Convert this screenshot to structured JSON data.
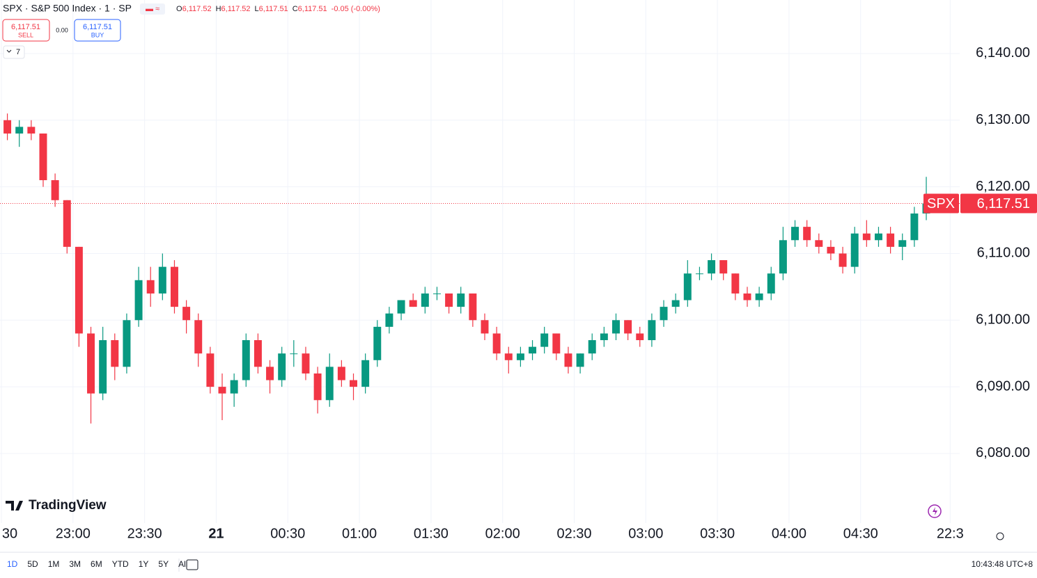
{
  "chart_data": {
    "type": "candlestick",
    "title": "SPX · S&P 500 Index · 1 · SP",
    "ohlc_readout": [
      "O",
      "6,117.52",
      "H",
      "6,117.52",
      "L",
      "6,117.51",
      "C",
      "6,117.51",
      "-0.05 (-0.00%)"
    ],
    "sell_price": "6,117.51",
    "sell_label": "SELL",
    "spread": "0.00",
    "buy_price": "6,117.51",
    "buy_label": "BUY",
    "indicator_count": "7",
    "up_color": "#089981",
    "down_color": "#f23645",
    "ohlc": [
      [
        6130,
        6131,
        6127,
        6128
      ],
      [
        6128,
        6130,
        6126,
        6129
      ],
      [
        6129,
        6130,
        6127,
        6128
      ],
      [
        6128,
        6128,
        6120,
        6121
      ],
      [
        6121,
        6122,
        6117,
        6118
      ],
      [
        6118,
        6118,
        6110,
        6111
      ],
      [
        6111,
        6111,
        6096,
        6098
      ],
      [
        6098,
        6099,
        6084.5,
        6089
      ],
      [
        6089,
        6099,
        6088,
        6097
      ],
      [
        6097,
        6098,
        6091,
        6093
      ],
      [
        6093,
        6101,
        6092,
        6100
      ],
      [
        6100,
        6108,
        6099,
        6106
      ],
      [
        6106,
        6108,
        6102,
        6104
      ],
      [
        6104,
        6110,
        6103,
        6108
      ],
      [
        6108,
        6109,
        6101,
        6102
      ],
      [
        6102,
        6103,
        6098,
        6100
      ],
      [
        6100,
        6101,
        6093,
        6095
      ],
      [
        6095,
        6096,
        6089,
        6090
      ],
      [
        6090,
        6092,
        6085,
        6089
      ],
      [
        6089,
        6092,
        6087,
        6091
      ],
      [
        6091,
        6098,
        6090,
        6097
      ],
      [
        6097,
        6098,
        6092,
        6093
      ],
      [
        6093,
        6094,
        6089,
        6091
      ],
      [
        6091,
        6096,
        6090,
        6095
      ],
      [
        6095,
        6097,
        6093,
        6095
      ],
      [
        6095,
        6096,
        6091,
        6092
      ],
      [
        6092,
        6093,
        6086,
        6088
      ],
      [
        6088,
        6095,
        6087,
        6093
      ],
      [
        6093,
        6094,
        6090,
        6091
      ],
      [
        6091,
        6092,
        6088,
        6090
      ],
      [
        6090,
        6095,
        6089,
        6094
      ],
      [
        6094,
        6100,
        6093,
        6099
      ],
      [
        6099,
        6102,
        6098,
        6101
      ],
      [
        6101,
        6103,
        6100,
        6103
      ],
      [
        6103,
        6104,
        6102,
        6102
      ],
      [
        6102,
        6105,
        6101,
        6104
      ],
      [
        6104,
        6105,
        6103,
        6104
      ],
      [
        6104,
        6104,
        6101,
        6102
      ],
      [
        6102,
        6105,
        6101,
        6104
      ],
      [
        6104,
        6104,
        6099,
        6100
      ],
      [
        6100,
        6101,
        6097,
        6098
      ],
      [
        6098,
        6099,
        6094,
        6095
      ],
      [
        6095,
        6096,
        6092,
        6094
      ],
      [
        6094,
        6096,
        6093,
        6095
      ],
      [
        6095,
        6097,
        6094,
        6096
      ],
      [
        6096,
        6099,
        6095,
        6098
      ],
      [
        6098,
        6098,
        6094,
        6095
      ],
      [
        6095,
        6096,
        6092,
        6093
      ],
      [
        6093,
        6095,
        6092,
        6095
      ],
      [
        6095,
        6098,
        6094,
        6097
      ],
      [
        6097,
        6099,
        6096,
        6098
      ],
      [
        6098,
        6101,
        6097,
        6100
      ],
      [
        6100,
        6100,
        6097,
        6098
      ],
      [
        6098,
        6099,
        6096,
        6097
      ],
      [
        6097,
        6101,
        6096,
        6100
      ],
      [
        6100,
        6103,
        6099,
        6102
      ],
      [
        6102,
        6104,
        6101,
        6103
      ],
      [
        6103,
        6109,
        6102,
        6107
      ],
      [
        6107,
        6108,
        6106,
        6107
      ],
      [
        6107,
        6110,
        6106,
        6109
      ],
      [
        6109,
        6109,
        6106,
        6107
      ],
      [
        6107,
        6107,
        6103,
        6104
      ],
      [
        6104,
        6105,
        6102,
        6103
      ],
      [
        6103,
        6105,
        6102,
        6104
      ],
      [
        6104,
        6108,
        6103,
        6107
      ],
      [
        6107,
        6114,
        6106,
        6112
      ],
      [
        6112,
        6115,
        6111,
        6114
      ],
      [
        6114,
        6115,
        6111,
        6112
      ],
      [
        6112,
        6113,
        6110,
        6111
      ],
      [
        6111,
        6112,
        6109,
        6110
      ],
      [
        6110,
        6111,
        6107,
        6108
      ],
      [
        6108,
        6114,
        6107,
        6113
      ],
      [
        6113,
        6115,
        6111,
        6112
      ],
      [
        6112,
        6114,
        6111,
        6113
      ],
      [
        6113,
        6114,
        6110,
        6111
      ],
      [
        6111,
        6113,
        6109,
        6112
      ],
      [
        6112,
        6117,
        6111,
        6116
      ],
      [
        6116,
        6121.5,
        6115,
        6117.51
      ]
    ],
    "xlim": [
      -0.117,
      80.3
    ],
    "xticks": [
      {
        "value": 0,
        "label": "30"
      },
      {
        "value": 6,
        "label": "23:00"
      },
      {
        "value": 12,
        "label": "23:30"
      },
      {
        "value": 18,
        "label": "21"
      },
      {
        "value": 24,
        "label": "00:30"
      },
      {
        "value": 30,
        "label": "01:00"
      },
      {
        "value": 36,
        "label": "01:30"
      },
      {
        "value": 42,
        "label": "02:00"
      },
      {
        "value": 48,
        "label": "02:30"
      },
      {
        "value": 54,
        "label": "03:00"
      },
      {
        "value": 60,
        "label": "03:30"
      },
      {
        "value": 66,
        "label": "04:00"
      },
      {
        "value": 72,
        "label": "04:30"
      },
      {
        "value": 79.5,
        "label": "22:3"
      }
    ],
    "ylim": [
      6069.56,
      6148.03
    ],
    "yticks": [
      {
        "value": 6080,
        "label": "6,080.00"
      },
      {
        "value": 6090,
        "label": "6,090.00"
      },
      {
        "value": 6100,
        "label": "6,100.00"
      },
      {
        "value": 6110,
        "label": "6,110.00"
      },
      {
        "value": 6120,
        "label": "6,120.00"
      },
      {
        "value": 6130,
        "label": "6,130.00"
      },
      {
        "value": 6140,
        "label": "6,140.00"
      }
    ],
    "grid": true,
    "last_price": {
      "value": 6117.51,
      "label": "6,117.51"
    },
    "last_symbol": "SPX",
    "logo": "TradingView",
    "ranges": [
      "1D",
      "5D",
      "1M",
      "3M",
      "6M",
      "YTD",
      "1Y",
      "5Y",
      "All"
    ],
    "clock": "10:43:48 UTC+8"
  }
}
